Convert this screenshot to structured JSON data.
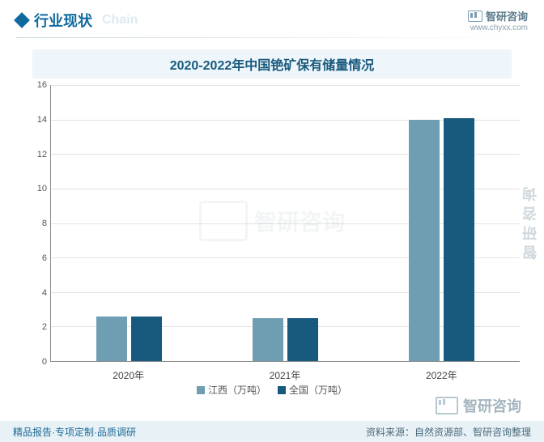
{
  "header": {
    "title": "行业现状",
    "subtitle": "Chain",
    "brand_name": "智研咨询",
    "brand_url": "www.chyxx.com"
  },
  "chart": {
    "type": "bar",
    "title": "2020-2022年中国铯矿保有储量情况",
    "categories": [
      "2020年",
      "2021年",
      "2022年"
    ],
    "series": [
      {
        "name": "江西（万吨）",
        "color": "#6f9eb3",
        "values": [
          2.6,
          2.5,
          14.0
        ]
      },
      {
        "name": "全国（万吨）",
        "color": "#185a7d",
        "values": [
          2.6,
          2.5,
          14.1
        ]
      }
    ],
    "ylim": [
      0,
      16
    ],
    "ytick_step": 2,
    "yticks": [
      0,
      2,
      4,
      6,
      8,
      10,
      12,
      14,
      16
    ],
    "background_color": "#ffffff",
    "grid_color": "#e2e2e2",
    "axis_color": "#888888",
    "bar_width_pct": 6.5,
    "bar_gap_pct": 1.0,
    "title_fontsize": 16,
    "label_fontsize": 12,
    "tick_fontsize": 11,
    "title_bg": "#eef6fb",
    "title_color": "#185a7d"
  },
  "footer": {
    "left": "精品报告·专项定制·品质调研",
    "right": "资料来源：自然资源部、智研咨询整理"
  },
  "watermark": {
    "side": "智研咨询",
    "brand": "智研咨询"
  }
}
